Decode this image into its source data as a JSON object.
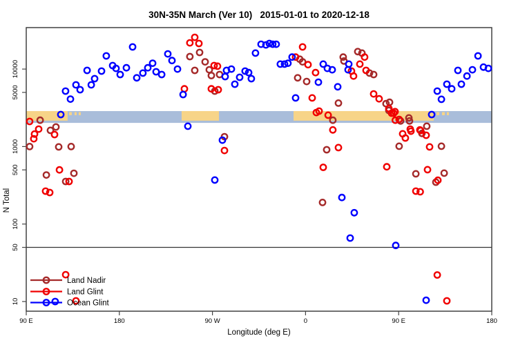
{
  "title": "30N-35N March (Ver 10)   2015-01-01 to 2020-12-18",
  "chart_data": {
    "type": "scatter",
    "title": "30N-35N March (Ver 10)   2015-01-01 to 2020-12-18",
    "xlabel": "Longitude (deg E)",
    "ylabel": "N Total",
    "x_axis": {
      "range": [
        90,
        540
      ],
      "ticks": [
        {
          "v": 90,
          "label": "90 E"
        },
        {
          "v": 180,
          "label": "180"
        },
        {
          "v": 270,
          "label": "90 W"
        },
        {
          "v": 360,
          "label": "0"
        },
        {
          "v": 450,
          "label": "90 E"
        },
        {
          "v": 540,
          "label": "180"
        }
      ]
    },
    "y_axis": {
      "scale": "log",
      "range": [
        7.2,
        34000
      ],
      "ticks": [
        {
          "v": 10,
          "label": "10"
        },
        {
          "v": 50,
          "label": "50"
        },
        {
          "v": 100,
          "label": "100"
        },
        {
          "v": 500,
          "label": "500"
        },
        {
          "v": 1000,
          "label": "1000"
        },
        {
          "v": 5000,
          "label": "5000"
        },
        {
          "v": 10000,
          "label": "10000"
        }
      ]
    },
    "reference_line_y": 50,
    "map_band": {
      "value_top": 2870,
      "value_bottom": 2020,
      "ocean_color": "#a9bdda",
      "land_color": "#f7d488",
      "land_segments_deg": [
        [
          90,
          130
        ],
        [
          240.2,
          276.3
        ],
        [
          348.4,
          483.9
        ]
      ],
      "island_segments_deg": [
        [
          131.4,
          134
        ],
        [
          136.7,
          138.7
        ],
        [
          140.7,
          142.7
        ],
        [
          486.6,
          489.3
        ],
        [
          491.9,
          494.6
        ],
        [
          496.6,
          498.6
        ]
      ]
    },
    "legend": {
      "position": "bottom-left"
    },
    "series": [
      {
        "name": "Land Nadir",
        "color": "#a52a2a",
        "points": [
          [
            93.3,
            1000
          ],
          [
            103.4,
            2190
          ],
          [
            109.4,
            430
          ],
          [
            113.4,
            1620
          ],
          [
            118.7,
            1790
          ],
          [
            121.4,
            990
          ],
          [
            128.1,
            354
          ],
          [
            133.4,
            1000
          ],
          [
            136.1,
            452
          ],
          [
            248.2,
            14500
          ],
          [
            252.9,
            9620
          ],
          [
            257.6,
            16400
          ],
          [
            262.9,
            12400
          ],
          [
            266.9,
            9800
          ],
          [
            268.9,
            8250
          ],
          [
            272.3,
            5200
          ],
          [
            276.9,
            8510
          ],
          [
            281.6,
            1340
          ],
          [
            352.4,
            7700
          ],
          [
            354.4,
            13400
          ],
          [
            357.1,
            12400
          ],
          [
            361.1,
            6920
          ],
          [
            376.4,
            190
          ],
          [
            380.4,
            910
          ],
          [
            386.4,
            2190
          ],
          [
            391.8,
            3640
          ],
          [
            396.4,
            14300
          ],
          [
            397.1,
            12700
          ],
          [
            410.5,
            16800
          ],
          [
            414.5,
            16100
          ],
          [
            421.8,
            8880
          ],
          [
            425.8,
            8510
          ],
          [
            437.8,
            3580
          ],
          [
            440.5,
            2930
          ],
          [
            441.2,
            3730
          ],
          [
            450.5,
            1010
          ],
          [
            451.9,
            2140
          ],
          [
            459.9,
            2340
          ],
          [
            460.5,
            2140
          ],
          [
            466.6,
            445
          ],
          [
            472.5,
            1480
          ],
          [
            477.2,
            1830
          ],
          [
            486,
            347
          ],
          [
            491.3,
            1010
          ],
          [
            494,
            454
          ]
        ]
      },
      {
        "name": "Land Glint",
        "color": "#f00000",
        "points": [
          [
            93.3,
            2110
          ],
          [
            97.3,
            1260
          ],
          [
            98,
            1450
          ],
          [
            102,
            1680
          ],
          [
            108.7,
            266
          ],
          [
            112.7,
            255
          ],
          [
            117.4,
            1430
          ],
          [
            122.1,
            500
          ],
          [
            128.1,
            22.2
          ],
          [
            131.4,
            354
          ],
          [
            138.1,
            10.2
          ],
          [
            242.9,
            5560
          ],
          [
            248.2,
            21800
          ],
          [
            252.9,
            25700
          ],
          [
            256.9,
            21400
          ],
          [
            268.9,
            5560
          ],
          [
            271.6,
            11100
          ],
          [
            274.9,
            10900
          ],
          [
            275.6,
            5420
          ],
          [
            281.6,
            890
          ],
          [
            350.4,
            14300
          ],
          [
            357.1,
            19300
          ],
          [
            362.4,
            11400
          ],
          [
            366.4,
            4240
          ],
          [
            369.7,
            9000
          ],
          [
            370.4,
            2750
          ],
          [
            373.1,
            2870
          ],
          [
            377.1,
            540
          ],
          [
            381.8,
            2540
          ],
          [
            386.4,
            1640
          ],
          [
            391.8,
            970
          ],
          [
            404.4,
            9420
          ],
          [
            406.4,
            8130
          ],
          [
            412.5,
            11600
          ],
          [
            417.1,
            14300
          ],
          [
            418.5,
            9620
          ],
          [
            425.8,
            4780
          ],
          [
            431.1,
            4130
          ],
          [
            438.5,
            548
          ],
          [
            440.5,
            3100
          ],
          [
            443.2,
            2700
          ],
          [
            445.2,
            2700
          ],
          [
            446.5,
            2820
          ],
          [
            446.8,
            2190
          ],
          [
            450.5,
            2240
          ],
          [
            453.9,
            1460
          ],
          [
            456.5,
            1290
          ],
          [
            461.2,
            1680
          ],
          [
            461.9,
            1580
          ],
          [
            466.6,
            266
          ],
          [
            470.5,
            1640
          ],
          [
            470.8,
            261
          ],
          [
            471.2,
            1610
          ],
          [
            476.6,
            1400
          ],
          [
            477.9,
            503
          ],
          [
            479.9,
            990
          ],
          [
            487.3,
            22
          ],
          [
            487.9,
            368
          ],
          [
            496.6,
            10.2
          ]
        ]
      },
      {
        "name": "Ocean Glint",
        "color": "#0000ff",
        "points": [
          [
            118,
            10
          ],
          [
            123.4,
            2590
          ],
          [
            128,
            5200
          ],
          [
            132.7,
            4100
          ],
          [
            138.1,
            6250
          ],
          [
            142.1,
            5420
          ],
          [
            148.8,
            9620
          ],
          [
            152.8,
            6250
          ],
          [
            156.1,
            7520
          ],
          [
            162.8,
            9420
          ],
          [
            167.4,
            14800
          ],
          [
            173.5,
            11100
          ],
          [
            176.8,
            10200
          ],
          [
            180.8,
            8510
          ],
          [
            186.8,
            10400
          ],
          [
            192.8,
            19300
          ],
          [
            196.8,
            7700
          ],
          [
            202.8,
            8880
          ],
          [
            207.5,
            10400
          ],
          [
            212.2,
            11900
          ],
          [
            215.5,
            9230
          ],
          [
            220.9,
            8510
          ],
          [
            226.9,
            15700
          ],
          [
            230.9,
            12900
          ],
          [
            236.2,
            10000
          ],
          [
            241.6,
            4690
          ],
          [
            246.2,
            1830
          ],
          [
            272.3,
            370
          ],
          [
            279.6,
            1210
          ],
          [
            282.3,
            8000
          ],
          [
            283.6,
            9620
          ],
          [
            288.3,
            10000
          ],
          [
            291.6,
            6380
          ],
          [
            296.3,
            7830
          ],
          [
            301.6,
            9420
          ],
          [
            305,
            9000
          ],
          [
            307.6,
            7520
          ],
          [
            311.6,
            16100
          ],
          [
            317,
            20900
          ],
          [
            321.7,
            20500
          ],
          [
            325,
            21400
          ],
          [
            328.3,
            20900
          ],
          [
            331.6,
            20900
          ],
          [
            335.6,
            11600
          ],
          [
            339.7,
            11600
          ],
          [
            343,
            11900
          ],
          [
            347,
            14300
          ],
          [
            350.4,
            4240
          ],
          [
            372.4,
            6780
          ],
          [
            377.1,
            11600
          ],
          [
            381.1,
            10200
          ],
          [
            385.8,
            9800
          ],
          [
            391.1,
            5900
          ],
          [
            395.1,
            220
          ],
          [
            401.1,
            9800
          ],
          [
            401.8,
            11600
          ],
          [
            403.1,
            66
          ],
          [
            407.1,
            140
          ],
          [
            447.2,
            53
          ],
          [
            476.6,
            10.4
          ],
          [
            481.9,
            2590
          ],
          [
            487.3,
            5200
          ],
          [
            491.3,
            4070
          ],
          [
            496.6,
            6380
          ],
          [
            501.3,
            5560
          ],
          [
            507.3,
            9620
          ],
          [
            510.6,
            6380
          ],
          [
            516,
            8130
          ],
          [
            521.3,
            9800
          ],
          [
            526.7,
            14800
          ],
          [
            532,
            10600
          ],
          [
            536.7,
            10200
          ]
        ]
      }
    ]
  },
  "style": {
    "frame_color": "#333333",
    "axis_color": "#444444",
    "text_color": "#000000"
  }
}
